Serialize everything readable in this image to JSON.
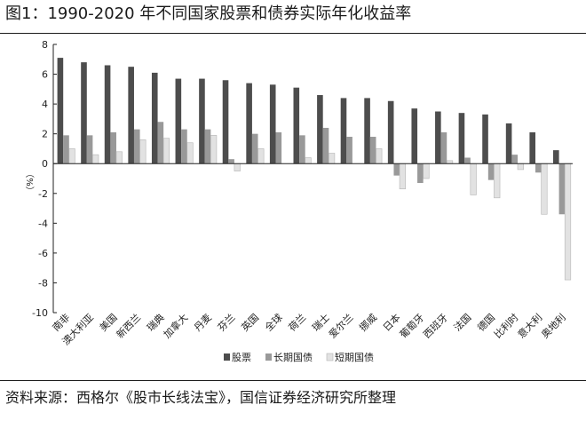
{
  "figure": {
    "title": "图1：1990-2020 年不同国家股票和债券实际年化收益率",
    "source": "资料来源：西格尔《股市长线法宝》，国信证券经济研究所整理"
  },
  "colors": {
    "stock": "#4d4d4d",
    "long_bond": "#999999",
    "short_bond": "#e2e2e2"
  },
  "chart_data": {
    "type": "bar",
    "title": "",
    "xlabel": "",
    "ylabel": "（%）",
    "ylim": [
      -10,
      8
    ],
    "yticks": [
      -10,
      -8,
      -6,
      -4,
      -2,
      0,
      2,
      4,
      6,
      8
    ],
    "grid": false,
    "legend_position": "bottom",
    "categories": [
      "南非",
      "澳大利亚",
      "美国",
      "新西兰",
      "瑞典",
      "加拿大",
      "丹麦",
      "芬兰",
      "英国",
      "全球",
      "荷兰",
      "瑞士",
      "爱尔兰",
      "挪威",
      "日本",
      "葡萄牙",
      "西班牙",
      "法国",
      "德国",
      "比利时",
      "意大利",
      "奥地利"
    ],
    "series": [
      {
        "name": "股票",
        "values": [
          7.1,
          6.8,
          6.6,
          6.5,
          6.1,
          5.7,
          5.7,
          5.6,
          5.4,
          5.3,
          5.1,
          4.6,
          4.4,
          4.4,
          4.2,
          3.7,
          3.5,
          3.4,
          3.3,
          2.7,
          2.1,
          0.9
        ]
      },
      {
        "name": "长期国债",
        "values": [
          1.9,
          1.9,
          2.1,
          2.3,
          2.8,
          2.3,
          2.3,
          0.3,
          2.0,
          2.1,
          1.9,
          2.4,
          1.8,
          1.8,
          -0.8,
          -1.3,
          2.1,
          0.4,
          -1.1,
          0.6,
          -0.6,
          -3.4
        ]
      },
      {
        "name": "短期国债",
        "values": [
          1.0,
          0.6,
          0.8,
          1.6,
          1.7,
          1.4,
          1.9,
          -0.5,
          1.0,
          null,
          0.4,
          0.7,
          null,
          1.0,
          -1.7,
          -1.0,
          0.2,
          -2.1,
          -2.3,
          -0.4,
          -3.4,
          -7.8
        ]
      }
    ]
  }
}
